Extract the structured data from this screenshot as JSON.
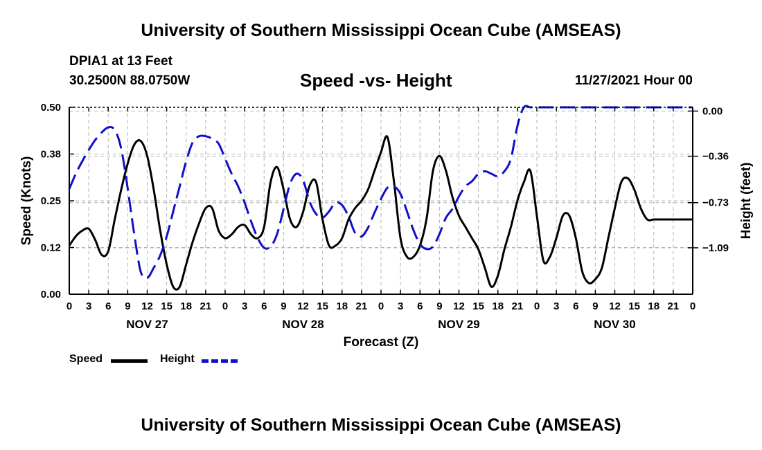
{
  "header": {
    "title": "University of Southern Mississippi Ocean Cube (AMSEAS)",
    "station": "DPIA1 at 13 Feet",
    "coords": "30.2500N  88.0750W",
    "subtitle": "Speed -vs- Height",
    "datetime": "11/27/2021 Hour 00"
  },
  "footer": {
    "title": "University of Southern Mississippi Ocean Cube (AMSEAS)"
  },
  "legend": {
    "speed_label": "Speed",
    "height_label": "Height"
  },
  "colors": {
    "speed": "#000000",
    "height": "#1010c8",
    "grid": "#b4b4b4"
  },
  "chart_data": {
    "type": "line",
    "title": "Speed -vs- Height",
    "xlabel": "Forecast (Z)",
    "ylabel": "Speed (Knots)",
    "y2label": "Height (feet)",
    "xlim": [
      0,
      96
    ],
    "ylim": [
      0,
      0.5
    ],
    "y2lim": [
      -1.46,
      0.03
    ],
    "x_ticks": [
      0,
      3,
      6,
      9,
      12,
      15,
      18,
      21,
      24,
      27,
      30,
      33,
      36,
      39,
      42,
      45,
      48,
      51,
      54,
      57,
      60,
      63,
      66,
      69,
      72,
      75,
      78,
      81,
      84,
      87,
      90,
      93,
      96
    ],
    "x_tick_labels": [
      "0",
      "3",
      "6",
      "9",
      "12",
      "15",
      "18",
      "21",
      "0",
      "3",
      "6",
      "9",
      "12",
      "15",
      "18",
      "21",
      "0",
      "3",
      "6",
      "9",
      "12",
      "15",
      "18",
      "21",
      "0",
      "3",
      "6",
      "9",
      "12",
      "15",
      "18",
      "21",
      "0"
    ],
    "day_labels": [
      {
        "x": 12,
        "label": "NOV 27"
      },
      {
        "x": 36,
        "label": "NOV 28"
      },
      {
        "x": 60,
        "label": "NOV 29"
      },
      {
        "x": 84,
        "label": "NOV 30"
      }
    ],
    "y_ticks": [
      0,
      0.125,
      0.25,
      0.375,
      0.5
    ],
    "y_tick_labels": [
      "0.00",
      "0.12",
      "0.25",
      "0.38",
      "0.50"
    ],
    "y2_ticks": [
      0,
      -0.36,
      -0.73,
      -1.09
    ],
    "y2_tick_labels": [
      "0.00",
      "−0.36",
      "−0.73",
      "−1.09"
    ],
    "series": [
      {
        "name": "Speed",
        "axis": "left",
        "style": "solid",
        "x": [
          0,
          1,
          2,
          3,
          4,
          5,
          6,
          7,
          8,
          9,
          10,
          11,
          12,
          13,
          14,
          15,
          16,
          17,
          18,
          19,
          20,
          21,
          22,
          23,
          24,
          25,
          26,
          27,
          28,
          29,
          30,
          31,
          32,
          33,
          34,
          35,
          36,
          37,
          38,
          39,
          40,
          41,
          42,
          43,
          44,
          45,
          46,
          47,
          48,
          49,
          50,
          51,
          52,
          53,
          54,
          55,
          56,
          57,
          58,
          59,
          60,
          61,
          62,
          63,
          64,
          65,
          66,
          67,
          68,
          69,
          70,
          71,
          72,
          73,
          74,
          75,
          76,
          77,
          78,
          79,
          80,
          81,
          82,
          83,
          84,
          85,
          86,
          87,
          88,
          89,
          90,
          91,
          92,
          93,
          94,
          95,
          96
        ],
        "values": [
          0.13,
          0.155,
          0.17,
          0.175,
          0.145,
          0.105,
          0.115,
          0.2,
          0.28,
          0.35,
          0.4,
          0.41,
          0.37,
          0.28,
          0.17,
          0.08,
          0.02,
          0.02,
          0.08,
          0.14,
          0.19,
          0.23,
          0.23,
          0.17,
          0.15,
          0.16,
          0.18,
          0.185,
          0.16,
          0.15,
          0.18,
          0.3,
          0.34,
          0.28,
          0.2,
          0.18,
          0.22,
          0.29,
          0.3,
          0.2,
          0.13,
          0.13,
          0.15,
          0.2,
          0.23,
          0.25,
          0.28,
          0.33,
          0.38,
          0.42,
          0.3,
          0.15,
          0.1,
          0.1,
          0.13,
          0.2,
          0.33,
          0.37,
          0.33,
          0.26,
          0.21,
          0.18,
          0.15,
          0.12,
          0.07,
          0.02,
          0.05,
          0.12,
          0.18,
          0.25,
          0.3,
          0.33,
          0.21,
          0.09,
          0.1,
          0.15,
          0.21,
          0.21,
          0.15,
          0.06,
          0.03,
          0.04,
          0.07,
          0.15,
          0.23,
          0.3,
          0.31,
          0.28,
          0.23,
          0.2,
          0.2,
          0.2,
          0.2,
          0.2,
          0.2,
          0.2,
          0.2
        ]
      },
      {
        "name": "Height",
        "axis": "right",
        "style": "dashed",
        "x": [
          0,
          1,
          2,
          3,
          4,
          5,
          6,
          7,
          8,
          9,
          10,
          11,
          12,
          13,
          14,
          15,
          16,
          17,
          18,
          19,
          20,
          21,
          22,
          23,
          24,
          25,
          26,
          27,
          28,
          29,
          30,
          31,
          32,
          33,
          34,
          35,
          36,
          37,
          38,
          39,
          40,
          41,
          42,
          43,
          44,
          45,
          46,
          47,
          48,
          49,
          50,
          51,
          52,
          53,
          54,
          55,
          56,
          57,
          58,
          59,
          60,
          61,
          62,
          63,
          64,
          65,
          66,
          67,
          68,
          69,
          70,
          71,
          72,
          73,
          74,
          75,
          76,
          77,
          78,
          79,
          80,
          81,
          82,
          83,
          84,
          85,
          86,
          87,
          88,
          89,
          90,
          91,
          92,
          93,
          94,
          95,
          96
        ],
        "values": [
          -0.62,
          -0.5,
          -0.4,
          -0.31,
          -0.23,
          -0.17,
          -0.13,
          -0.15,
          -0.3,
          -0.62,
          -0.98,
          -1.28,
          -1.33,
          -1.25,
          -1.15,
          -1.0,
          -0.8,
          -0.6,
          -0.4,
          -0.25,
          -0.2,
          -0.2,
          -0.22,
          -0.26,
          -0.38,
          -0.5,
          -0.6,
          -0.73,
          -0.88,
          -1.01,
          -1.09,
          -1.08,
          -0.98,
          -0.78,
          -0.58,
          -0.5,
          -0.55,
          -0.72,
          -0.82,
          -0.85,
          -0.8,
          -0.73,
          -0.75,
          -0.84,
          -0.97,
          -1.0,
          -0.93,
          -0.81,
          -0.7,
          -0.61,
          -0.6,
          -0.66,
          -0.8,
          -0.95,
          -1.06,
          -1.1,
          -1.08,
          -0.98,
          -0.85,
          -0.78,
          -0.68,
          -0.6,
          -0.56,
          -0.5,
          -0.48,
          -0.5,
          -0.52,
          -0.48,
          -0.38,
          -0.12,
          0.03,
          0.03,
          0.03,
          0.03,
          0.03,
          0.03,
          0.03,
          0.03,
          0.03,
          0.03,
          0.03,
          0.03,
          0.03,
          0.03,
          0.03,
          0.03,
          0.03,
          0.03,
          0.03,
          0.03,
          0.03,
          0.03,
          0.03,
          0.03,
          0.03,
          0.03,
          0.03
        ]
      }
    ]
  }
}
